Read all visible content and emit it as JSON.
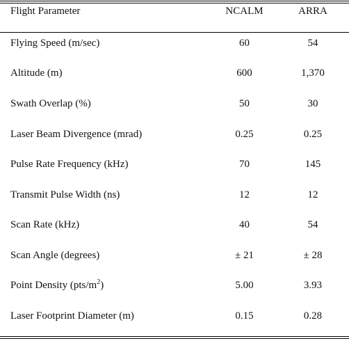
{
  "table": {
    "headers": [
      "Flight Parameter",
      "NCALM",
      "ARRA"
    ],
    "rows": [
      {
        "param": "Flying Speed (m/sec)",
        "ncalm": "60",
        "arra": "54"
      },
      {
        "param": "Altitude (m)",
        "ncalm": "600",
        "arra": "1,370"
      },
      {
        "param": "Swath Overlap (%)",
        "ncalm": "50",
        "arra": "30"
      },
      {
        "param": "Laser Beam Divergence (mrad)",
        "ncalm": "0.25",
        "arra": "0.25"
      },
      {
        "param": "Pulse Rate Frequency (kHz)",
        "ncalm": "70",
        "arra": "145"
      },
      {
        "param": "Transmit Pulse Width (ns)",
        "ncalm": "12",
        "arra": "12"
      },
      {
        "param": "Scan Rate (kHz)",
        "ncalm": "40",
        "arra": "54"
      },
      {
        "param": "Scan Angle (degrees)",
        "ncalm": "± 21",
        "arra": "± 28"
      },
      {
        "param_prefix": "Point Density (pts/m",
        "param_sup": "2",
        "param_suffix": ")",
        "ncalm": "5.00",
        "arra": "3.93"
      },
      {
        "param": "Laser Footprint Diameter (m)",
        "ncalm": "0.15",
        "arra": "0.28"
      }
    ]
  }
}
